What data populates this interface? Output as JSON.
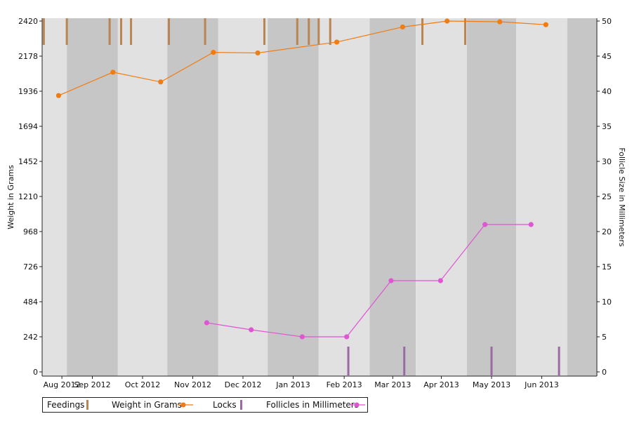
{
  "chart_data": {
    "type": "line",
    "x_tick_labels": [
      "Aug 2012",
      "Sep 2012",
      "Oct 2012",
      "Nov 2012",
      "Dec 2012",
      "Jan 2013",
      "Feb 2013",
      "Mar 2013",
      "Apr 2013",
      "May 2013",
      "Jun 2013"
    ],
    "y_left": {
      "label": "Weight in Grams",
      "ticks": [
        0,
        242,
        484,
        726,
        968,
        1210,
        1452,
        1694,
        1936,
        2178,
        2420
      ],
      "range": [
        0,
        2420
      ]
    },
    "y_right": {
      "label": "Follicle Size in Millimeters",
      "ticks": [
        0,
        5,
        10,
        15,
        20,
        25,
        30,
        35,
        40,
        45,
        50
      ],
      "range": [
        0,
        50
      ]
    },
    "x_range": [
      "2012-07-17",
      "2013-06-19"
    ],
    "background": "alternating month bands",
    "colors": {
      "weight": "#f07c12",
      "follicles": "#e055d4",
      "feedings": "#b98552",
      "locks": "#9a6aa3",
      "band_light": "#e1e1e1",
      "band_dark": "#c6c6c6"
    },
    "series": [
      {
        "name": "Weight in Grams",
        "axis": "left",
        "kind": "line-marker",
        "points": [
          [
            "2012-07-27",
            1906
          ],
          [
            "2012-08-29",
            2067
          ],
          [
            "2012-09-27",
            2000
          ],
          [
            "2012-10-29",
            2204
          ],
          [
            "2012-11-25",
            2200
          ],
          [
            "2013-01-12",
            2275
          ],
          [
            "2013-02-21",
            2379
          ],
          [
            "2013-03-20",
            2420
          ],
          [
            "2013-04-21",
            2415
          ],
          [
            "2013-05-19",
            2395
          ]
        ]
      },
      {
        "name": "Follicles in Millimeters",
        "axis": "right",
        "kind": "line-marker",
        "points": [
          [
            "2012-10-25",
            7
          ],
          [
            "2012-11-21",
            6
          ],
          [
            "2012-12-22",
            5
          ],
          [
            "2013-01-18",
            5
          ],
          [
            "2013-02-14",
            13
          ],
          [
            "2013-03-16",
            13
          ],
          [
            "2013-04-12",
            21
          ],
          [
            "2013-05-10",
            21
          ]
        ]
      },
      {
        "name": "Feedings",
        "kind": "event-top",
        "dates": [
          "2012-07-18",
          "2012-08-01",
          "2012-08-27",
          "2012-09-03",
          "2012-09-09",
          "2012-10-02",
          "2012-10-24",
          "2012-11-29",
          "2012-12-19",
          "2012-12-26",
          "2013-01-01",
          "2013-01-08",
          "2013-03-05",
          "2013-03-31"
        ]
      },
      {
        "name": "Locks",
        "kind": "event-bottom",
        "dates": [
          "2013-01-19",
          "2013-02-22",
          "2013-04-16",
          "2013-05-27"
        ]
      }
    ],
    "legend": {
      "position": "bottom-left",
      "items": [
        "Feedings",
        "Weight in Grams",
        "Locks",
        "Follicles in Millimeters"
      ]
    }
  }
}
